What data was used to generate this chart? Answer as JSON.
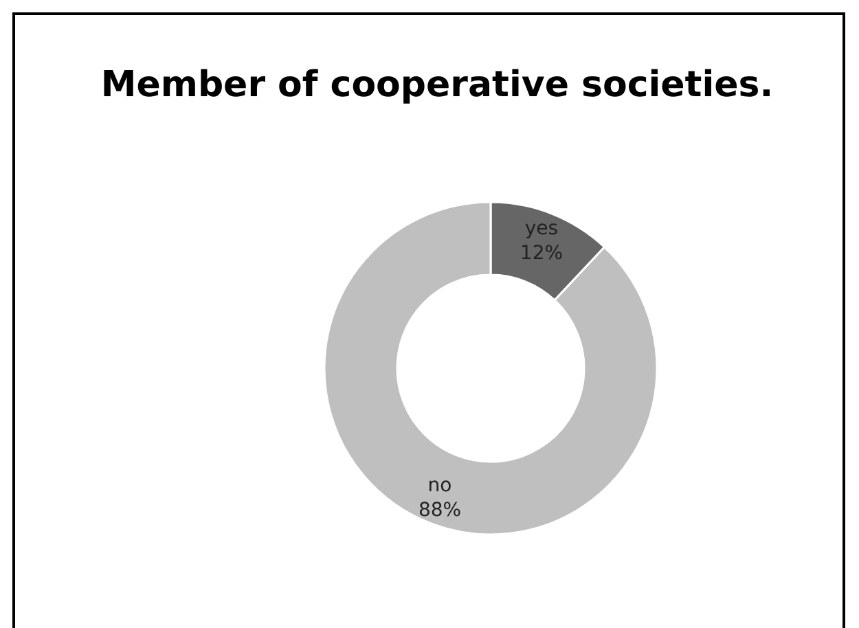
{
  "chart_data": {
    "type": "donut",
    "title": "Member of cooperative societies.",
    "categories": [
      "yes",
      "no"
    ],
    "values": [
      12,
      88
    ],
    "value_labels": [
      "12%",
      "88%"
    ],
    "colors": [
      "#666666",
      "#bfbfbf"
    ]
  }
}
